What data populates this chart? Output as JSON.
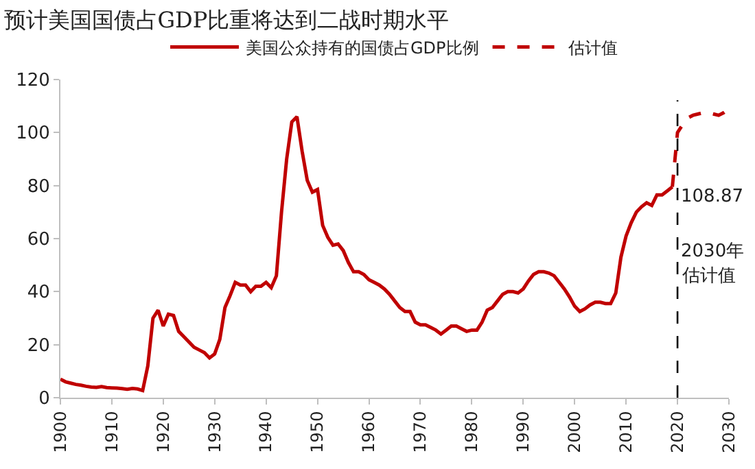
{
  "chart_data": {
    "type": "line",
    "title": "预计美国国债占GDP比重将达到二战时期水平",
    "xlim": [
      1900,
      2030
    ],
    "xticks": [
      1900,
      1910,
      1920,
      1930,
      1940,
      1950,
      1960,
      1970,
      1980,
      1990,
      2000,
      2010,
      2020,
      2030
    ],
    "ylim": [
      0,
      120
    ],
    "yticks": [
      0,
      20,
      40,
      60,
      80,
      100,
      120
    ],
    "grid": false,
    "legend": "top",
    "marker": "none",
    "series": [
      {
        "name": "美国公众持有的国债占GDP比例",
        "color": "#c00000",
        "line_style": "solid",
        "x": [
          1900,
          1901,
          1902,
          1903,
          1904,
          1905,
          1906,
          1907,
          1908,
          1909,
          1910,
          1911,
          1912,
          1913,
          1914,
          1915,
          1916,
          1917,
          1918,
          1919,
          1920,
          1921,
          1922,
          1923,
          1924,
          1925,
          1926,
          1927,
          1928,
          1929,
          1930,
          1931,
          1932,
          1933,
          1934,
          1935,
          1936,
          1937,
          1938,
          1939,
          1940,
          1941,
          1942,
          1943,
          1944,
          1945,
          1946,
          1947,
          1948,
          1949,
          1950,
          1951,
          1952,
          1953,
          1954,
          1955,
          1956,
          1957,
          1958,
          1959,
          1960,
          1961,
          1962,
          1963,
          1964,
          1965,
          1966,
          1967,
          1968,
          1969,
          1970,
          1971,
          1972,
          1973,
          1974,
          1975,
          1976,
          1977,
          1978,
          1979,
          1980,
          1981,
          1982,
          1983,
          1984,
          1985,
          1986,
          1987,
          1988,
          1989,
          1990,
          1991,
          1992,
          1993,
          1994,
          1995,
          1996,
          1997,
          1998,
          1999,
          2000,
          2001,
          2002,
          2003,
          2004,
          2005,
          2006,
          2007,
          2008,
          2009,
          2010,
          2011,
          2012,
          2013,
          2014,
          2015,
          2016,
          2017,
          2018,
          2019
        ],
        "values": [
          7,
          6,
          5.5,
          5,
          4.7,
          4.3,
          4,
          3.9,
          4.2,
          3.8,
          3.7,
          3.6,
          3.4,
          3.2,
          3.5,
          3.3,
          2.7,
          12,
          30,
          33,
          27,
          31.5,
          31,
          25,
          23,
          21,
          19,
          18,
          17,
          15,
          16.5,
          22,
          34,
          38.5,
          43.5,
          42.5,
          42.5,
          40,
          42,
          42,
          43.5,
          41.5,
          46,
          70,
          90,
          104,
          106,
          93,
          82,
          77.5,
          78.5,
          65,
          60.5,
          57.5,
          58,
          55.5,
          51,
          47.5,
          47.5,
          46.5,
          44.5,
          43.5,
          42.5,
          41,
          39,
          36.5,
          34,
          32.5,
          32.5,
          28.5,
          27.5,
          27.5,
          26.5,
          25.5,
          24,
          25.5,
          27,
          27,
          26,
          25,
          25.5,
          25.5,
          28.5,
          33,
          34,
          36.5,
          39,
          40,
          40,
          39.5,
          41,
          44,
          46.5,
          47.5,
          47.5,
          47,
          46,
          43.5,
          41,
          38,
          34.5,
          32.5,
          33.5,
          35,
          36,
          36,
          35.5,
          35.5,
          39.5,
          53,
          61,
          66,
          70,
          72,
          73.5,
          72.5,
          76.5,
          76.5,
          78,
          79.5
        ]
      },
      {
        "name": "估计值",
        "color": "#c00000",
        "line_style": "dashed",
        "x": [
          2019,
          2020,
          2021,
          2022,
          2023,
          2024,
          2025,
          2026,
          2027,
          2028,
          2029,
          2030
        ],
        "values": [
          79.5,
          100,
          103,
          105.5,
          106.5,
          107,
          107.5,
          107.5,
          107,
          106.5,
          107.5,
          108.87
        ]
      }
    ],
    "ref_lines": [
      {
        "axis": "x",
        "value": 2020,
        "color": "#000000",
        "line_style": "dashed"
      }
    ],
    "annotations": [
      "108.87",
      "2030年",
      "估计值"
    ]
  }
}
